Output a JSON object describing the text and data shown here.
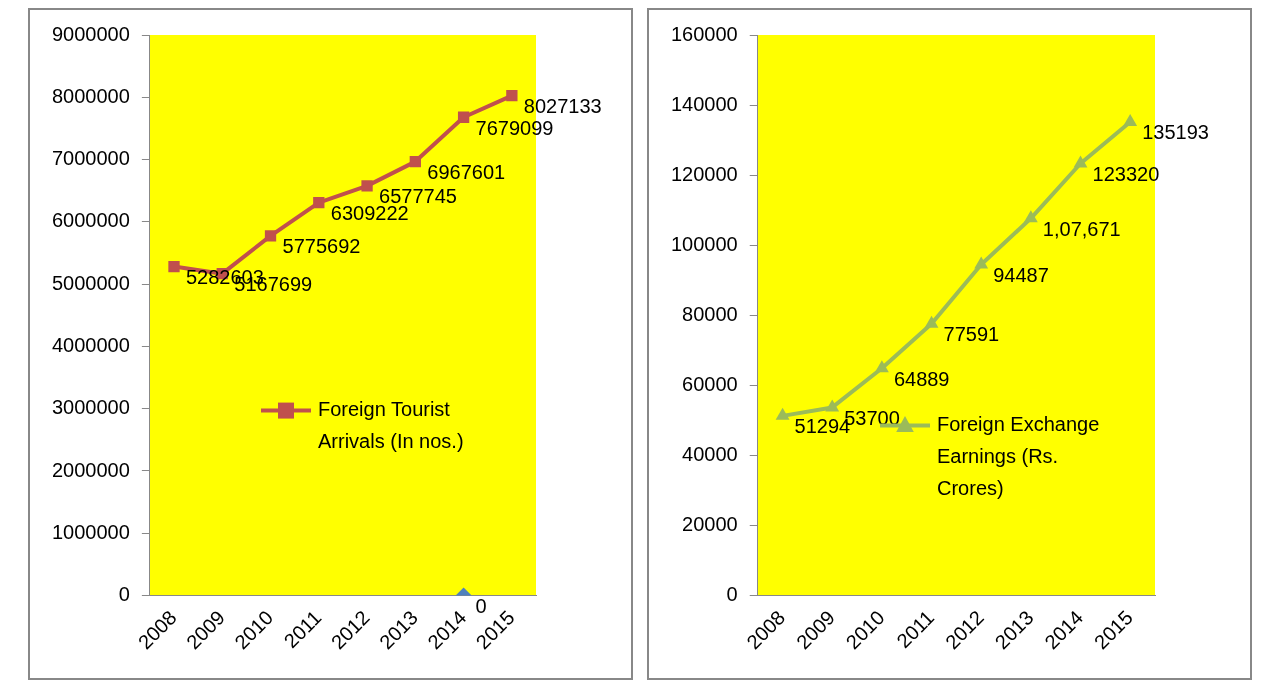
{
  "chart_data": [
    {
      "type": "line",
      "categories": [
        "2008",
        "2009",
        "2010",
        "2011",
        "2012",
        "2013",
        "2014",
        "2015"
      ],
      "series": [
        {
          "name": "Foreign Tourist Arrivals (In nos.)",
          "color": "#c0504d",
          "values": [
            5282603,
            5167699,
            5775692,
            6309222,
            6577745,
            6967601,
            7679099,
            8027133
          ]
        },
        {
          "type": "scatter",
          "color": "#4f81bd",
          "marker": "diamond",
          "values": [
            null,
            null,
            null,
            null,
            null,
            null,
            0,
            null
          ]
        }
      ],
      "ylim": [
        0,
        9000000
      ],
      "yticks": [
        0,
        1000000,
        2000000,
        3000000,
        4000000,
        5000000,
        6000000,
        7000000,
        8000000,
        9000000
      ],
      "grid": false,
      "legend": "right",
      "marker": "square",
      "data_labels": true
    },
    {
      "type": "line",
      "categories": [
        "2008",
        "2009",
        "2010",
        "2011",
        "2012",
        "2013",
        "2014",
        "2015"
      ],
      "series": [
        {
          "name": "Foreign Exchange Earnings (Rs. Crores)",
          "color": "#9bbb59",
          "values": [
            51294,
            53700,
            64889,
            77591,
            94487,
            107671,
            123320,
            135193
          ],
          "value_labels": [
            "51294",
            "53700",
            "64889",
            "77591",
            "94487",
            "1,07,671",
            "123320",
            "135193"
          ]
        }
      ],
      "ylim": [
        0,
        160000
      ],
      "yticks": [
        0,
        20000,
        40000,
        60000,
        80000,
        100000,
        120000,
        140000,
        160000
      ],
      "grid": false,
      "legend": "bottom right",
      "marker": "triangle"
    }
  ]
}
